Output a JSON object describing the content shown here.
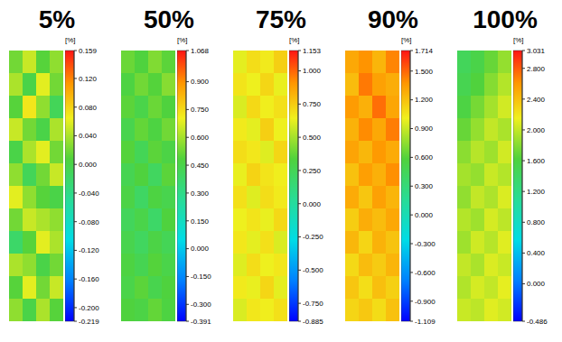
{
  "chart_data": [
    {
      "type": "heatmap",
      "title": "5%",
      "colorbar_label": "[%]",
      "colorbar_lim": [
        -0.219,
        0.159
      ],
      "colorbar_ticks": [
        -0.219,
        {
          "value": -0.2,
          "label": "-0.200"
        },
        {
          "value": -0.16,
          "label": "-0.160"
        },
        {
          "value": -0.12,
          "label": "-0.120"
        },
        {
          "value": -0.08,
          "label": "-0.080"
        },
        {
          "value": -0.04,
          "label": "-0.040"
        },
        {
          "value": 0,
          "label": "0.000"
        },
        {
          "value": 0.04,
          "label": "0.040"
        },
        {
          "value": 0.08,
          "label": "0.080"
        },
        {
          "value": 0.12,
          "label": "0.120"
        },
        0.159
      ],
      "cells": [
        [
          0.02,
          0.05,
          0.01,
          0.03
        ],
        [
          0.04,
          0.0,
          0.06,
          0.02
        ],
        [
          0.01,
          0.07,
          0.03,
          -0.01
        ],
        [
          0.05,
          0.02,
          0.0,
          0.04
        ],
        [
          0.0,
          0.04,
          0.06,
          0.02
        ],
        [
          0.03,
          -0.01,
          0.02,
          0.05
        ],
        [
          0.06,
          0.03,
          0.01,
          0.0
        ],
        [
          0.02,
          0.05,
          0.04,
          0.03
        ],
        [
          -0.02,
          0.01,
          0.06,
          0.04
        ],
        [
          0.04,
          0.03,
          0.0,
          0.02
        ],
        [
          0.01,
          0.06,
          0.02,
          0.05
        ],
        [
          0.03,
          0.0,
          0.04,
          0.01
        ]
      ]
    },
    {
      "type": "heatmap",
      "title": "50%",
      "colorbar_label": "[%]",
      "colorbar_lim": [
        -0.391,
        1.068
      ],
      "colorbar_ticks": [
        -0.391,
        {
          "value": -0.3,
          "label": "-0.300"
        },
        {
          "value": -0.15,
          "label": "-0.150"
        },
        {
          "value": 0,
          "label": "0.000"
        },
        {
          "value": 0.15,
          "label": "0.150"
        },
        {
          "value": 0.3,
          "label": "0.300"
        },
        {
          "value": 0.45,
          "label": "0.450"
        },
        {
          "value": 0.6,
          "label": "0.600"
        },
        {
          "value": 0.75,
          "label": "0.750"
        },
        {
          "value": 0.9,
          "label": "0.900"
        },
        1.068
      ],
      "cells": [
        [
          0.52,
          0.48,
          0.55,
          0.5
        ],
        [
          0.47,
          0.53,
          0.49,
          0.56
        ],
        [
          0.5,
          0.45,
          0.52,
          0.48
        ],
        [
          0.44,
          0.51,
          0.47,
          0.53
        ],
        [
          0.49,
          0.42,
          0.5,
          0.46
        ],
        [
          0.43,
          0.48,
          0.4,
          0.5
        ],
        [
          0.46,
          0.39,
          0.47,
          0.44
        ],
        [
          0.41,
          0.45,
          0.38,
          0.48
        ],
        [
          0.44,
          0.4,
          0.46,
          0.42
        ],
        [
          0.47,
          0.43,
          0.49,
          0.45
        ],
        [
          0.45,
          0.5,
          0.44,
          0.48
        ],
        [
          0.48,
          0.46,
          0.51,
          0.47
        ]
      ]
    },
    {
      "type": "heatmap",
      "title": "75%",
      "colorbar_label": "[%]",
      "colorbar_lim": [
        -0.885,
        1.153
      ],
      "colorbar_ticks": [
        -0.885,
        {
          "value": -0.75,
          "label": "-0.750"
        },
        {
          "value": -0.5,
          "label": "-0.500"
        },
        {
          "value": -0.25,
          "label": "-0.250"
        },
        {
          "value": 0,
          "label": "0.000"
        },
        {
          "value": 0.25,
          "label": "0.250"
        },
        {
          "value": 0.5,
          "label": "0.500"
        },
        {
          "value": 0.75,
          "label": "0.750"
        },
        {
          "value": 1,
          "label": "1.000"
        },
        1.153
      ],
      "cells": [
        [
          0.62,
          0.7,
          0.66,
          0.74
        ],
        [
          0.68,
          0.64,
          0.72,
          0.63
        ],
        [
          0.6,
          0.71,
          0.65,
          0.69
        ],
        [
          0.66,
          0.62,
          0.74,
          0.64
        ],
        [
          0.7,
          0.67,
          0.61,
          0.72
        ],
        [
          0.63,
          0.73,
          0.68,
          0.65
        ],
        [
          0.69,
          0.61,
          0.7,
          0.66
        ],
        [
          0.64,
          0.68,
          0.63,
          0.71
        ],
        [
          0.67,
          0.62,
          0.69,
          0.6
        ],
        [
          0.61,
          0.7,
          0.64,
          0.67
        ],
        [
          0.66,
          0.63,
          0.72,
          0.62
        ],
        [
          0.6,
          0.67,
          0.65,
          0.69
        ]
      ]
    },
    {
      "type": "heatmap",
      "title": "90%",
      "colorbar_label": "[%]",
      "colorbar_lim": [
        -1.109,
        1.714
      ],
      "colorbar_ticks": [
        -1.109,
        {
          "value": -0.9,
          "label": "-0.900"
        },
        {
          "value": -0.6,
          "label": "-0.600"
        },
        {
          "value": -0.3,
          "label": "-0.300"
        },
        {
          "value": 0,
          "label": "0.000"
        },
        {
          "value": 0.3,
          "label": "0.300"
        },
        {
          "value": 0.6,
          "label": "0.600"
        },
        {
          "value": 0.9,
          "label": "0.900"
        },
        {
          "value": 1.2,
          "label": "1.200"
        },
        {
          "value": 1.5,
          "label": "1.500"
        },
        1.714
      ],
      "cells": [
        [
          1.3,
          1.38,
          1.25,
          1.42
        ],
        [
          1.22,
          1.45,
          1.33,
          1.28
        ],
        [
          1.35,
          1.27,
          1.48,
          1.31
        ],
        [
          1.26,
          1.4,
          1.3,
          1.44
        ],
        [
          1.32,
          1.24,
          1.36,
          1.29
        ],
        [
          1.2,
          1.34,
          1.27,
          1.39
        ],
        [
          1.29,
          1.18,
          1.33,
          1.25
        ],
        [
          1.15,
          1.28,
          1.22,
          1.3
        ],
        [
          1.24,
          1.12,
          1.26,
          1.19
        ],
        [
          1.1,
          1.22,
          1.16,
          1.25
        ],
        [
          1.18,
          1.08,
          1.21,
          1.14
        ],
        [
          1.12,
          1.17,
          1.09,
          1.2
        ]
      ]
    },
    {
      "type": "heatmap",
      "title": "100%",
      "colorbar_label": "[%]",
      "colorbar_lim": [
        -0.486,
        3.031
      ],
      "colorbar_ticks": [
        -0.486,
        {
          "value": 0,
          "label": "0.000"
        },
        {
          "value": 0.4,
          "label": "0.400"
        },
        {
          "value": 0.8,
          "label": "0.800"
        },
        {
          "value": 1.2,
          "label": "1.200"
        },
        {
          "value": 1.6,
          "label": "1.600"
        },
        {
          "value": 2,
          "label": "2.000"
        },
        {
          "value": 2.4,
          "label": "2.400"
        },
        {
          "value": 2.8,
          "label": "2.800"
        },
        3.031
      ],
      "cells": [
        [
          1.45,
          1.55,
          1.7,
          1.85
        ],
        [
          1.5,
          1.62,
          1.8,
          1.95
        ],
        [
          1.58,
          1.75,
          1.9,
          2.05
        ],
        [
          1.7,
          1.85,
          2.0,
          1.92
        ],
        [
          1.82,
          1.96,
          1.88,
          2.05
        ],
        [
          1.9,
          1.85,
          2.02,
          1.95
        ],
        [
          1.84,
          2.0,
          1.93,
          2.08
        ],
        [
          1.95,
          1.88,
          2.06,
          1.98
        ],
        [
          1.88,
          2.04,
          1.96,
          2.1
        ],
        [
          2.0,
          1.92,
          2.08,
          2.02
        ],
        [
          1.94,
          2.06,
          2.0,
          2.12
        ],
        [
          2.02,
          1.98,
          2.1,
          2.05
        ]
      ]
    }
  ]
}
